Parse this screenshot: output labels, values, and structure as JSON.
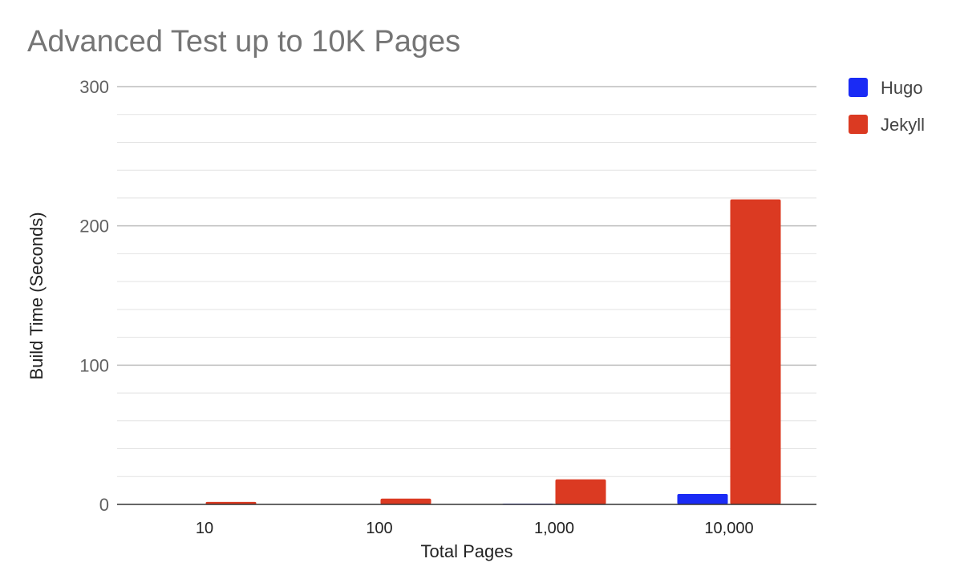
{
  "chart_data": {
    "type": "bar",
    "title": "Advanced Test up to 10K Pages",
    "xlabel": "Total Pages",
    "ylabel": "Build Time (Seconds)",
    "categories": [
      "10",
      "100",
      "1,000",
      "10,000"
    ],
    "series": [
      {
        "name": "Hugo",
        "color": "#1a2bf5",
        "values": [
          0.1,
          0.2,
          0.5,
          7.5
        ]
      },
      {
        "name": "Jekyll",
        "color": "#db3a22",
        "values": [
          1.8,
          4.2,
          18,
          219
        ]
      }
    ],
    "ylim": [
      0,
      300
    ],
    "yticks": [
      "0",
      "100",
      "200",
      "300"
    ],
    "grid": true,
    "legend": "right"
  }
}
